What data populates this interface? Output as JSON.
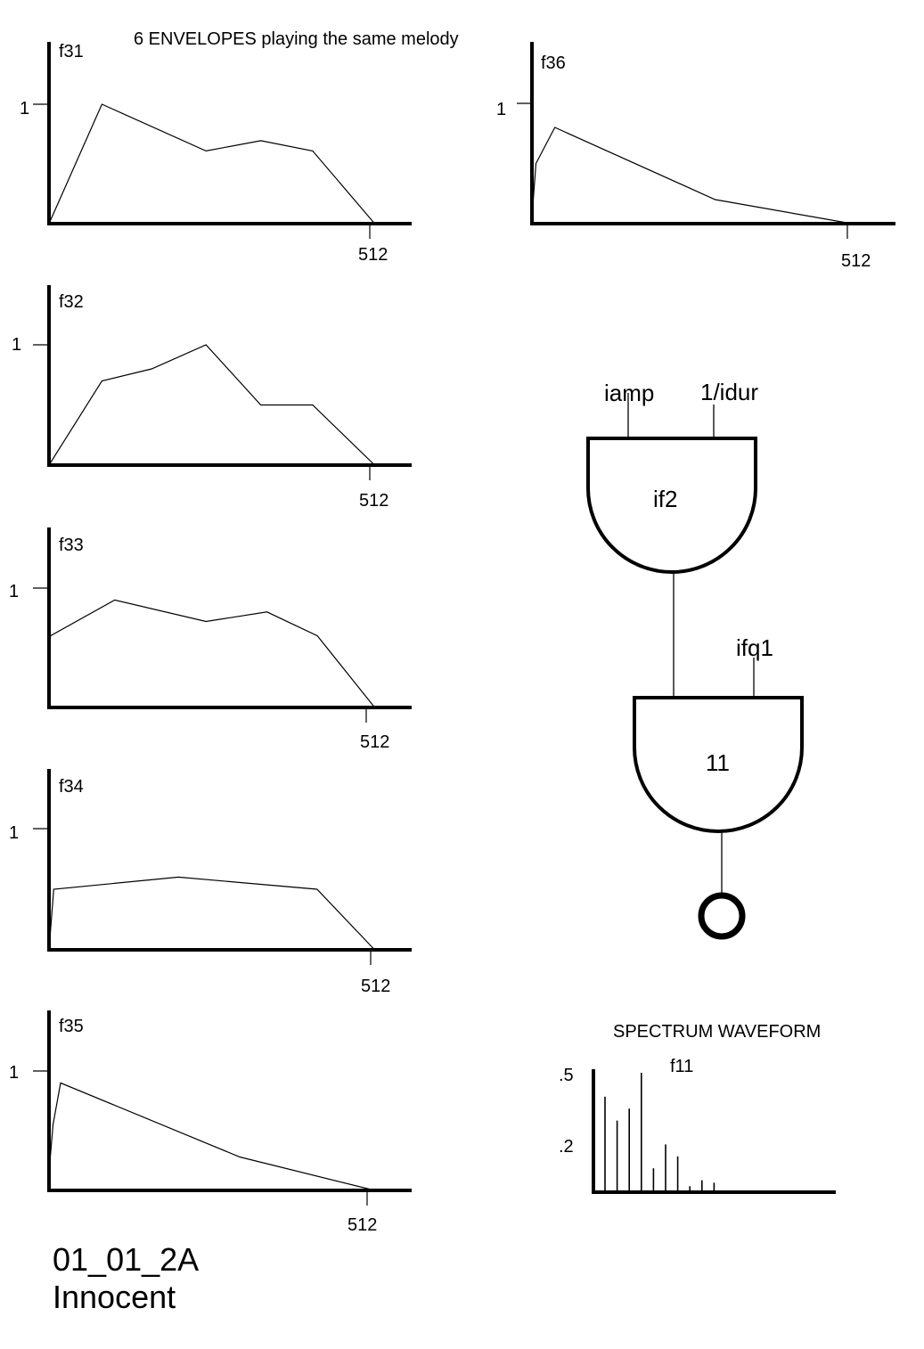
{
  "heading": "6 ENVELOPES playing the same melody",
  "footer": {
    "code": "01_01_2A",
    "name": "Innocent"
  },
  "envelopes": [
    {
      "name": "f31",
      "y_tick": "1",
      "x_tick": "512",
      "points": [
        [
          0,
          0
        ],
        [
          0.146,
          1
        ],
        [
          0.433,
          0.609
        ],
        [
          0.584,
          0.695
        ],
        [
          0.727,
          0.609
        ],
        [
          0.898,
          0
        ]
      ]
    },
    {
      "name": "f32",
      "y_tick": "1",
      "x_tick": "512",
      "points": [
        [
          0,
          0
        ],
        [
          0.146,
          0.7
        ],
        [
          0.283,
          0.8
        ],
        [
          0.433,
          1
        ],
        [
          0.584,
          0.5
        ],
        [
          0.727,
          0.5
        ],
        [
          0.898,
          0
        ]
      ]
    },
    {
      "name": "f33",
      "y_tick": "1",
      "x_tick": "512",
      "points": [
        [
          0,
          0.3
        ],
        [
          0.004,
          0.6
        ],
        [
          0.181,
          0.9
        ],
        [
          0.433,
          0.72
        ],
        [
          0.601,
          0.8
        ],
        [
          0.74,
          0.6
        ],
        [
          0.898,
          0
        ]
      ]
    },
    {
      "name": "f34",
      "y_tick": "1",
      "x_tick": "512",
      "points": [
        [
          0,
          0
        ],
        [
          0.013,
          0.5
        ],
        [
          0.357,
          0.6
        ],
        [
          0.739,
          0.5
        ],
        [
          0.898,
          0
        ]
      ]
    },
    {
      "name": "f35",
      "y_tick": "1",
      "x_tick": "512",
      "points": [
        [
          0,
          0.15
        ],
        [
          0.011,
          0.55
        ],
        [
          0.032,
          0.9
        ],
        [
          0.526,
          0.28
        ],
        [
          0.898,
          0
        ]
      ]
    },
    {
      "name": "f36",
      "y_tick": "1",
      "x_tick": "512",
      "points": [
        [
          0,
          0.05
        ],
        [
          0.011,
          0.5
        ],
        [
          0.063,
          0.8
        ],
        [
          0.504,
          0.2
        ],
        [
          0.88,
          0
        ]
      ]
    }
  ],
  "diagram": {
    "oscil1": {
      "label": "if2",
      "inputs": [
        "iamp",
        "1/idur"
      ]
    },
    "oscil2": {
      "label": "11",
      "extra_input": "ifq1"
    },
    "output_icon": "output-circle-icon"
  },
  "spectrum": {
    "title": "SPECTRUM WAVEFORM",
    "table": "f11",
    "y_ticks": [
      ".5",
      ".2"
    ],
    "partials": [
      0.8,
      0.6,
      0.7,
      1.0,
      0.2,
      0.4,
      0.3,
      0.05,
      0.1,
      0.08
    ]
  }
}
